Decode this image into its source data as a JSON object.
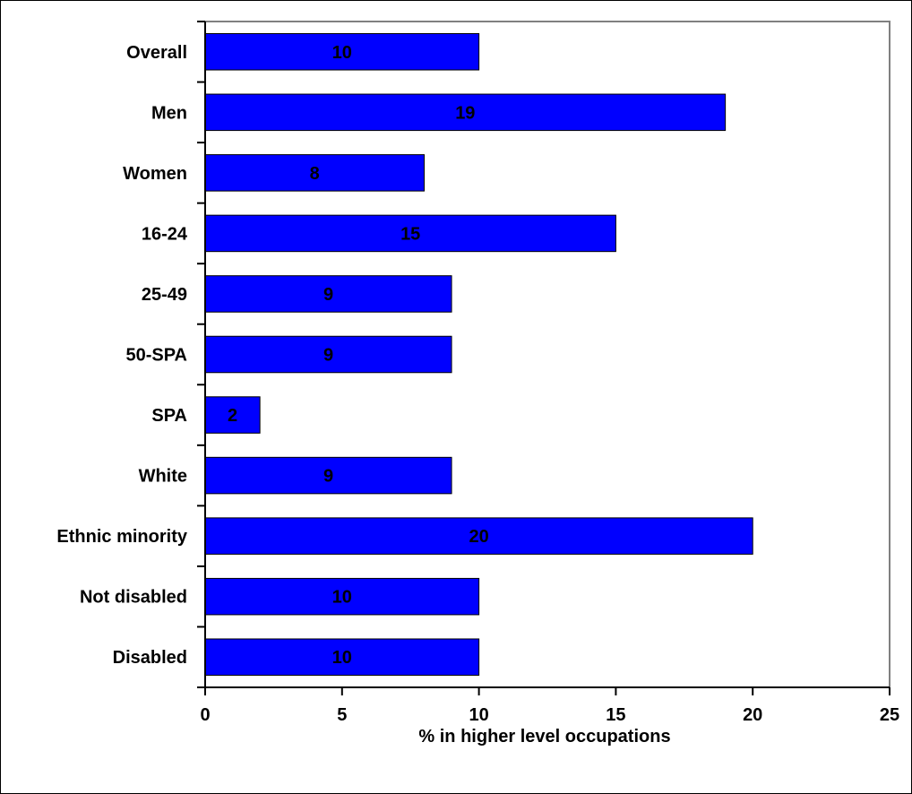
{
  "chart_data": {
    "type": "bar",
    "orientation": "horizontal",
    "categories": [
      "Overall",
      "Men",
      "Women",
      "16-24",
      "25-49",
      "50-SPA",
      "SPA",
      "White",
      "Ethnic minority",
      "Not disabled",
      "Disabled"
    ],
    "values": [
      10,
      19,
      8,
      15,
      9,
      9,
      2,
      9,
      20,
      10,
      10
    ],
    "xlabel": "% in higher level occupations",
    "ylabel": "",
    "title": "",
    "xlim": [
      0,
      25
    ],
    "xticks": [
      0,
      5,
      10,
      15,
      20,
      25
    ],
    "data_labels": true,
    "legend": false,
    "grid": false,
    "colors": {
      "bar": "#0000FF",
      "plot_border": "#808080",
      "axis": "#000000"
    }
  }
}
